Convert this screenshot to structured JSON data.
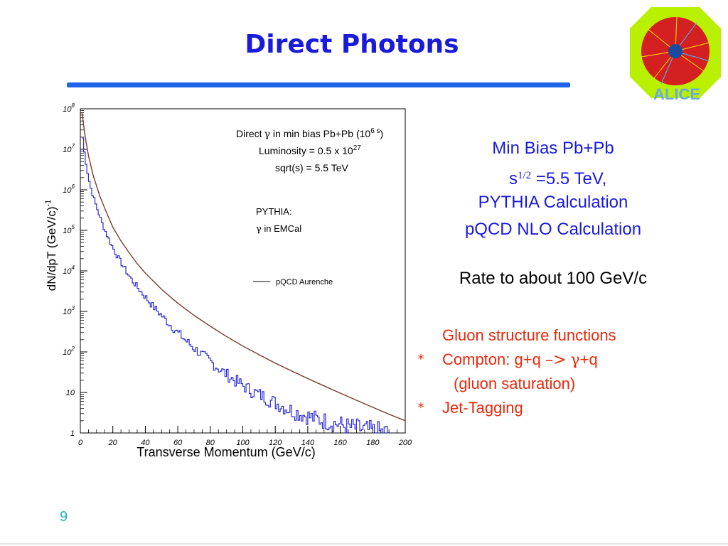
{
  "slide": {
    "title": "Direct Photons",
    "page_number": "9"
  },
  "logo": {
    "text": "ALICE"
  },
  "info": {
    "line1": "Min Bias Pb+Pb",
    "line2_base": "s",
    "line2_sup": "1/2",
    "line2_rest": " =5.5 TeV,",
    "line3": "PYTHIA Calculation",
    "line4": "pQCD NLO Calculation",
    "rate": "Rate to about 100 GeV/c"
  },
  "bullets": [
    {
      "marker": "",
      "text": "Gluon structure functions"
    },
    {
      "marker": "*",
      "text_before": "Compton: g+q ",
      "arrow": "–>",
      "gamma": "γ",
      "text_after": "+q"
    },
    {
      "marker": "",
      "text": "(gluon saturation)"
    },
    {
      "marker": "*",
      "text": "Jet-Tagging"
    }
  ],
  "colors": {
    "title": "#1a1adc",
    "rule": "#1e63e8",
    "bullets": "#e8290b",
    "page_number": "#21b3b3",
    "pythia": "#2b2bd6",
    "pqcd": "#7a3a2a"
  },
  "chart_data": {
    "type": "line",
    "xlabel": "Transverse Momentum (GeV/c)",
    "ylabel": "dN/dpT  (GeV/c)",
    "ylabel_sup": "-1",
    "xlim": [
      0,
      200
    ],
    "ylim_log10": [
      0,
      8
    ],
    "yscale": "log",
    "x_ticks": [
      0,
      20,
      40,
      60,
      80,
      100,
      120,
      140,
      160,
      180,
      200
    ],
    "y_ticks": [
      {
        "value": 1,
        "base": "1",
        "exp": ""
      },
      {
        "value": 10,
        "base": "10",
        "exp": ""
      },
      {
        "value": 100,
        "base": "10",
        "exp": "2"
      },
      {
        "value": 1000,
        "base": "10",
        "exp": "3"
      },
      {
        "value": 10000,
        "base": "10",
        "exp": "4"
      },
      {
        "value": 100000,
        "base": "10",
        "exp": "5"
      },
      {
        "value": 1000000,
        "base": "10",
        "exp": "6"
      },
      {
        "value": 10000000,
        "base": "10",
        "exp": "7"
      },
      {
        "value": 100000000,
        "base": "10",
        "exp": "8"
      }
    ],
    "annotation": {
      "line1": "Direct",
      "gamma": "γ",
      "line1_rest": " in min bias Pb+Pb (10",
      "line1_sup": "6 s",
      "line1_end": ")",
      "line2": "Luminosity = 0.5 x 10",
      "line2_sup": "27",
      "line3": "sqrt(s) = 5.5 TeV"
    },
    "pythia_label": "PYTHIA:",
    "pythia_label2": " in EMCal",
    "legend_entry": "pQCD Aurenche",
    "series": [
      {
        "name": "pQCD Aurenche",
        "x": [
          1,
          3,
          5,
          8,
          12,
          16,
          20,
          25,
          30,
          35,
          40,
          50,
          60,
          70,
          80,
          90,
          100,
          110,
          120,
          130,
          140,
          150,
          160,
          170,
          180,
          190,
          200
        ],
        "y": [
          80000000,
          20000000,
          7000000,
          2200000,
          700000,
          280000,
          120000,
          55000,
          28000,
          15000,
          8800,
          3500,
          1600,
          800,
          430,
          240,
          140,
          85,
          53,
          34,
          22,
          14.5,
          9.6,
          6.4,
          4.3,
          2.9,
          2.0
        ]
      },
      {
        "name": "PYTHIA",
        "x": [
          1,
          2,
          3,
          4,
          5,
          7,
          10,
          14,
          18,
          22,
          26,
          30,
          35,
          40,
          45,
          50,
          55,
          60,
          65,
          70,
          75,
          80,
          85,
          90,
          95,
          100,
          105,
          110,
          115,
          120,
          125,
          130,
          135,
          140,
          145,
          150,
          155,
          160,
          165,
          170,
          175,
          180,
          185,
          190
        ],
        "y": [
          30000000,
          12000000,
          6000000,
          3500000,
          2000000,
          900000,
          380000,
          130000,
          55000,
          26000,
          14000,
          7500,
          4000,
          2300,
          1300,
          800,
          480,
          300,
          190,
          125,
          85,
          58,
          40,
          28,
          20,
          15,
          11,
          9,
          7,
          5.5,
          4.5,
          3.6,
          3,
          2.6,
          2.2,
          2,
          1.8,
          1.6,
          1.4,
          1.3,
          1.2,
          1.1,
          1.05,
          1
        ]
      }
    ]
  }
}
